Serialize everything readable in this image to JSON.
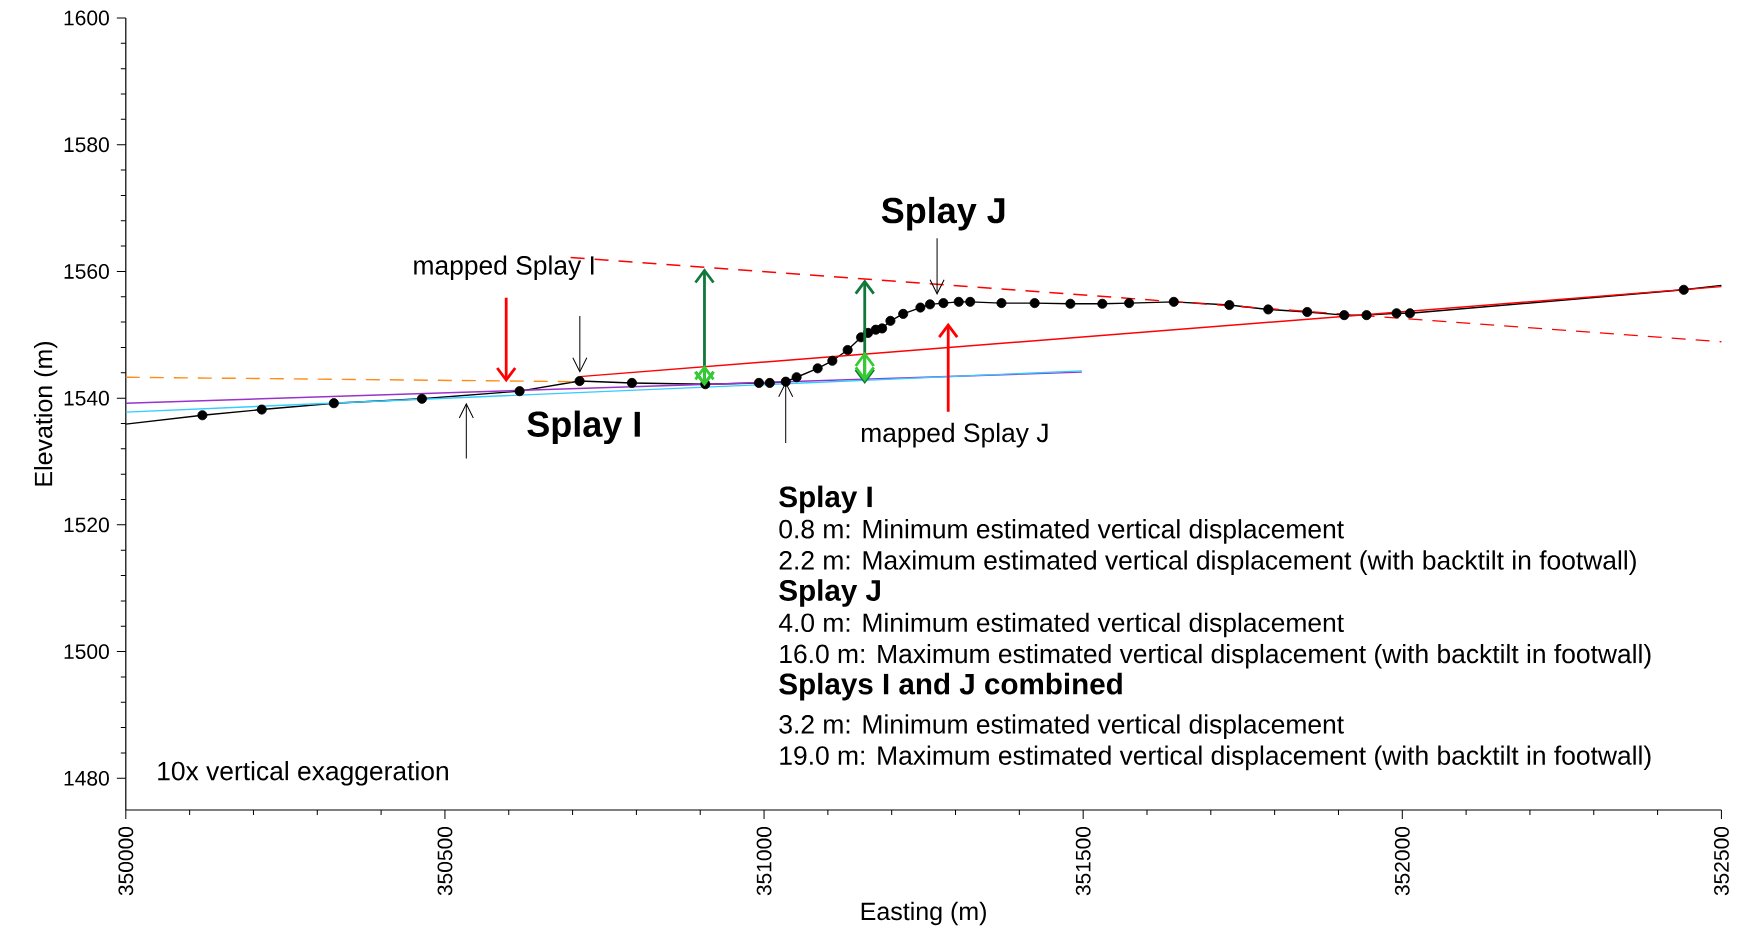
{
  "chart_data": {
    "type": "line",
    "xlabel": "Easting (m)",
    "ylabel": "Elevation (m)",
    "xlim": [
      350000,
      352500
    ],
    "ylim": [
      1475,
      1600
    ],
    "xticks": [
      350000,
      350500,
      351000,
      351500,
      352000,
      352500
    ],
    "yticks": [
      1480,
      1500,
      1520,
      1540,
      1560,
      1580,
      1600
    ],
    "series": [
      {
        "color": "#000000",
        "x": [
          350000,
          350120,
          350213,
          350326,
          350464,
          350617,
          350711,
          350793,
          350908,
          350992,
          351009,
          351034,
          351051,
          351084,
          351107,
          351131,
          351152,
          351163,
          351175,
          351185,
          351198,
          351218,
          351245,
          351260,
          351281,
          351305,
          351323,
          351372,
          351424,
          351480,
          351530,
          351572,
          351642,
          351729,
          351790,
          351851,
          351909,
          351944,
          351991,
          352012,
          352441,
          352500
        ],
        "values": [
          1535.9,
          1537.3,
          1538.2,
          1539.2,
          1539.9,
          1541.1,
          1542.7,
          1542.4,
          1542.2,
          1542.4,
          1542.4,
          1542.6,
          1543.3,
          1544.7,
          1545.9,
          1547.6,
          1549.6,
          1550.3,
          1550.8,
          1551.0,
          1552.2,
          1553.3,
          1554.3,
          1554.8,
          1555.0,
          1555.2,
          1555.2,
          1555.0,
          1555.0,
          1554.9,
          1554.9,
          1555.0,
          1555.2,
          1554.7,
          1554.0,
          1553.6,
          1553.1,
          1553.1,
          1553.4,
          1553.4,
          1557.1,
          1557.8
        ]
      },
      {
        "type": "scatter",
        "marker": "circle",
        "color": "#000000",
        "x": [
          350120,
          350213,
          350326,
          350464,
          350617,
          350711,
          350793,
          350908,
          350992,
          351009,
          351034,
          351051,
          351084,
          351107,
          351131,
          351152,
          351163,
          351175,
          351185,
          351198,
          351218,
          351245,
          351260,
          351281,
          351305,
          351323,
          351372,
          351424,
          351480,
          351530,
          351572,
          351642,
          351729,
          351790,
          351851,
          351909,
          351944,
          351991,
          352012,
          352441
        ],
        "values": [
          1537.3,
          1538.2,
          1539.2,
          1539.9,
          1541.1,
          1542.7,
          1542.4,
          1542.2,
          1542.4,
          1542.4,
          1542.6,
          1543.3,
          1544.7,
          1545.9,
          1547.6,
          1549.6,
          1550.3,
          1550.8,
          1551.0,
          1552.2,
          1553.3,
          1554.3,
          1554.8,
          1555.0,
          1555.2,
          1555.2,
          1555.0,
          1555.0,
          1554.9,
          1554.9,
          1555.0,
          1555.2,
          1554.7,
          1554.0,
          1553.6,
          1553.1,
          1553.1,
          1553.4,
          1553.4,
          1557.1
        ]
      },
      {
        "color": "#ff0000",
        "x": [
          350711,
          352500
        ],
        "values": [
          1543.4,
          1557.6
        ]
      },
      {
        "color": "#ff0000",
        "line_style": "dashed",
        "x": [
          350697,
          352500
        ],
        "values": [
          1562.2,
          1548.9
        ]
      },
      {
        "color": "#ff8c1a",
        "line_style": "dashed",
        "x": [
          350000,
          350710
        ],
        "values": [
          1543.3,
          1542.6
        ]
      },
      {
        "color": "#9933cc",
        "x": [
          350000,
          351498
        ],
        "values": [
          1539.2,
          1544.1
        ]
      },
      {
        "color": "#33ccff",
        "x": [
          350000,
          351498
        ],
        "values": [
          1537.8,
          1544.3
        ]
      }
    ],
    "annotations": [
      {
        "text": "mapped Splay I",
        "x": 350596,
        "y": 1542.5
      },
      "Splay I",
      "Splay J",
      "mapped Splay J",
      "10x vertical exaggeration",
      "Splay I",
      "0.8 m: Minimum estimated vertical displacement",
      "2.2 m: Maximum estimated vertical displacement (with backtilt in footwall)",
      "Splay J",
      "4.0 m: Minimum estimated vertical displacement",
      "16.0 m: Maximum estimated vertical displacement (with backtilt in footwall)",
      "Splays I and J combined",
      "3.2 m: Minimum estimated vertical displacement",
      "19.0 m: Maximum estimated vertical displacement (with backtilt in footwall)"
    ]
  }
}
